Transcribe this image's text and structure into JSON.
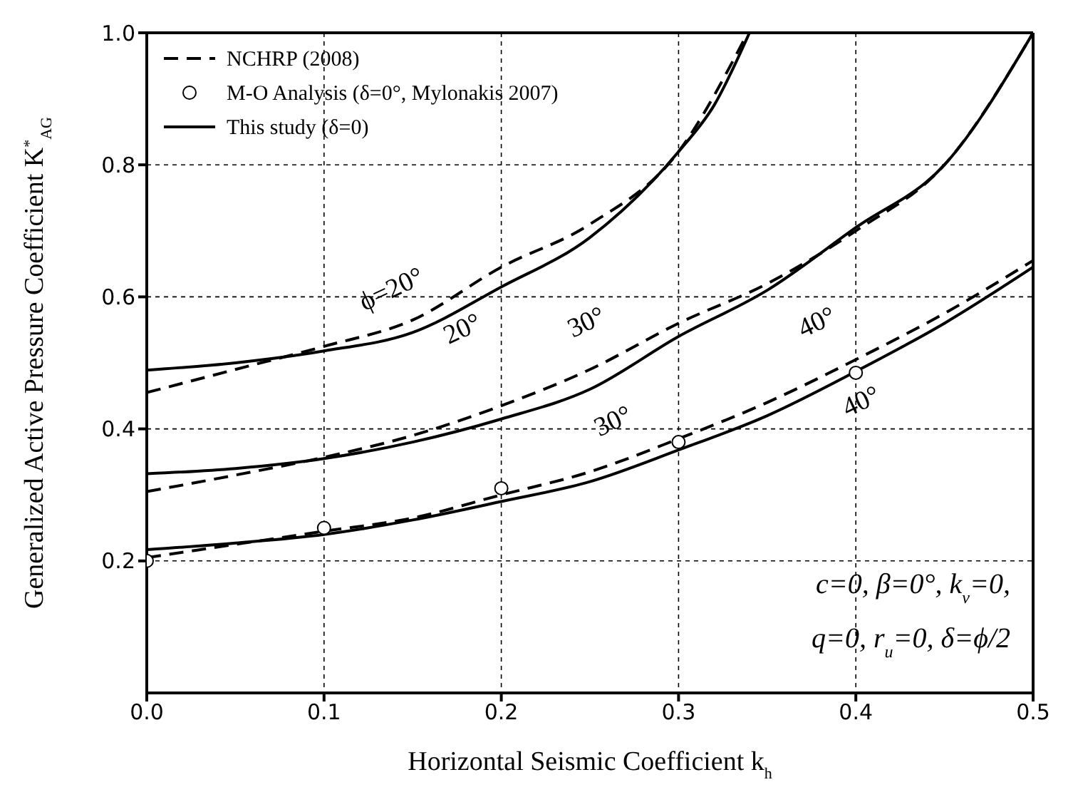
{
  "chart_data": {
    "type": "line",
    "xlabel": "Horizontal Seismic Coefficient k$_{h}$",
    "ylabel": "Generalized Active Pressure Coefficient K$^{*}$$_{AG}$",
    "xlim": [
      0,
      0.5
    ],
    "xticks": [
      {
        "value": 0,
        "label": "0.0"
      },
      0.1,
      0.2,
      0.3,
      0.4,
      0.5
    ],
    "ylim": [
      0,
      1
    ],
    "yticks": [
      0.2,
      0.4,
      0.6,
      0.8,
      {
        "value": 1,
        "label": "1.0"
      }
    ],
    "grid": true,
    "legend": "top left",
    "series": [
      {
        "name": "NCHRP (2008)",
        "line_style": "dashed",
        "color": "#000000",
        "x": [
          0,
          0.05,
          0.1,
          0.15,
          0.2,
          0.25,
          0.3,
          0.339
        ],
        "values": [
          0.455,
          0.49,
          0.525,
          0.565,
          0.645,
          0.71,
          0.82,
          1.0
        ]
      },
      {
        "type": "line",
        "line_style": "dashed",
        "color": "#000000",
        "x": [
          0,
          0.05,
          0.1,
          0.15,
          0.2,
          0.25,
          0.3,
          0.35,
          0.4,
          0.45,
          0.5
        ],
        "values": [
          0.305,
          0.33,
          0.357,
          0.39,
          0.435,
          0.49,
          0.56,
          0.62,
          0.7,
          0.8,
          1.0
        ]
      },
      {
        "type": "line",
        "line_style": "dashed",
        "color": "#000000",
        "x": [
          0,
          0.05,
          0.1,
          0.15,
          0.2,
          0.25,
          0.3,
          0.35,
          0.4,
          0.45,
          0.5
        ],
        "values": [
          0.205,
          0.225,
          0.245,
          0.265,
          0.3,
          0.335,
          0.385,
          0.44,
          0.505,
          0.575,
          0.655
        ]
      },
      {
        "name": "M-O Analysis (δ=0°, Mylonakis 2007)",
        "type": "scatter",
        "marker": "circle",
        "color": "#000000",
        "x": [
          0,
          0.1,
          0.2,
          0.3,
          0.4
        ],
        "values": [
          0.2,
          0.25,
          0.31,
          0.38,
          0.485
        ]
      },
      {
        "name": "This study (δ=0)",
        "line_style": "solid",
        "color": "#000000",
        "x": [
          0,
          0.05,
          0.1,
          0.15,
          0.2,
          0.25,
          0.3,
          0.32,
          0.34
        ],
        "values": [
          0.489,
          0.5,
          0.518,
          0.546,
          0.615,
          0.69,
          0.82,
          0.89,
          1.0
        ]
      },
      {
        "type": "line",
        "line_style": "solid",
        "color": "#000000",
        "x": [
          0,
          0.05,
          0.1,
          0.15,
          0.2,
          0.25,
          0.3,
          0.35,
          0.4,
          0.45,
          0.5
        ],
        "values": [
          0.332,
          0.34,
          0.355,
          0.38,
          0.415,
          0.46,
          0.54,
          0.61,
          0.705,
          0.8,
          1.0
        ]
      },
      {
        "type": "line",
        "line_style": "solid",
        "color": "#000000",
        "x": [
          0,
          0.05,
          0.1,
          0.15,
          0.2,
          0.25,
          0.3,
          0.35,
          0.4,
          0.45,
          0.5
        ],
        "values": [
          0.217,
          0.227,
          0.24,
          0.262,
          0.29,
          0.32,
          0.368,
          0.42,
          0.487,
          0.56,
          0.645
        ]
      }
    ],
    "annotations": [
      "ϕ=20°",
      "20°",
      "30°",
      "30°",
      "40°",
      "40°",
      "c=0, β=0°, k$_{v}$=0,",
      "q=0, r$_{u}$=0, δ=ϕ/2"
    ]
  }
}
